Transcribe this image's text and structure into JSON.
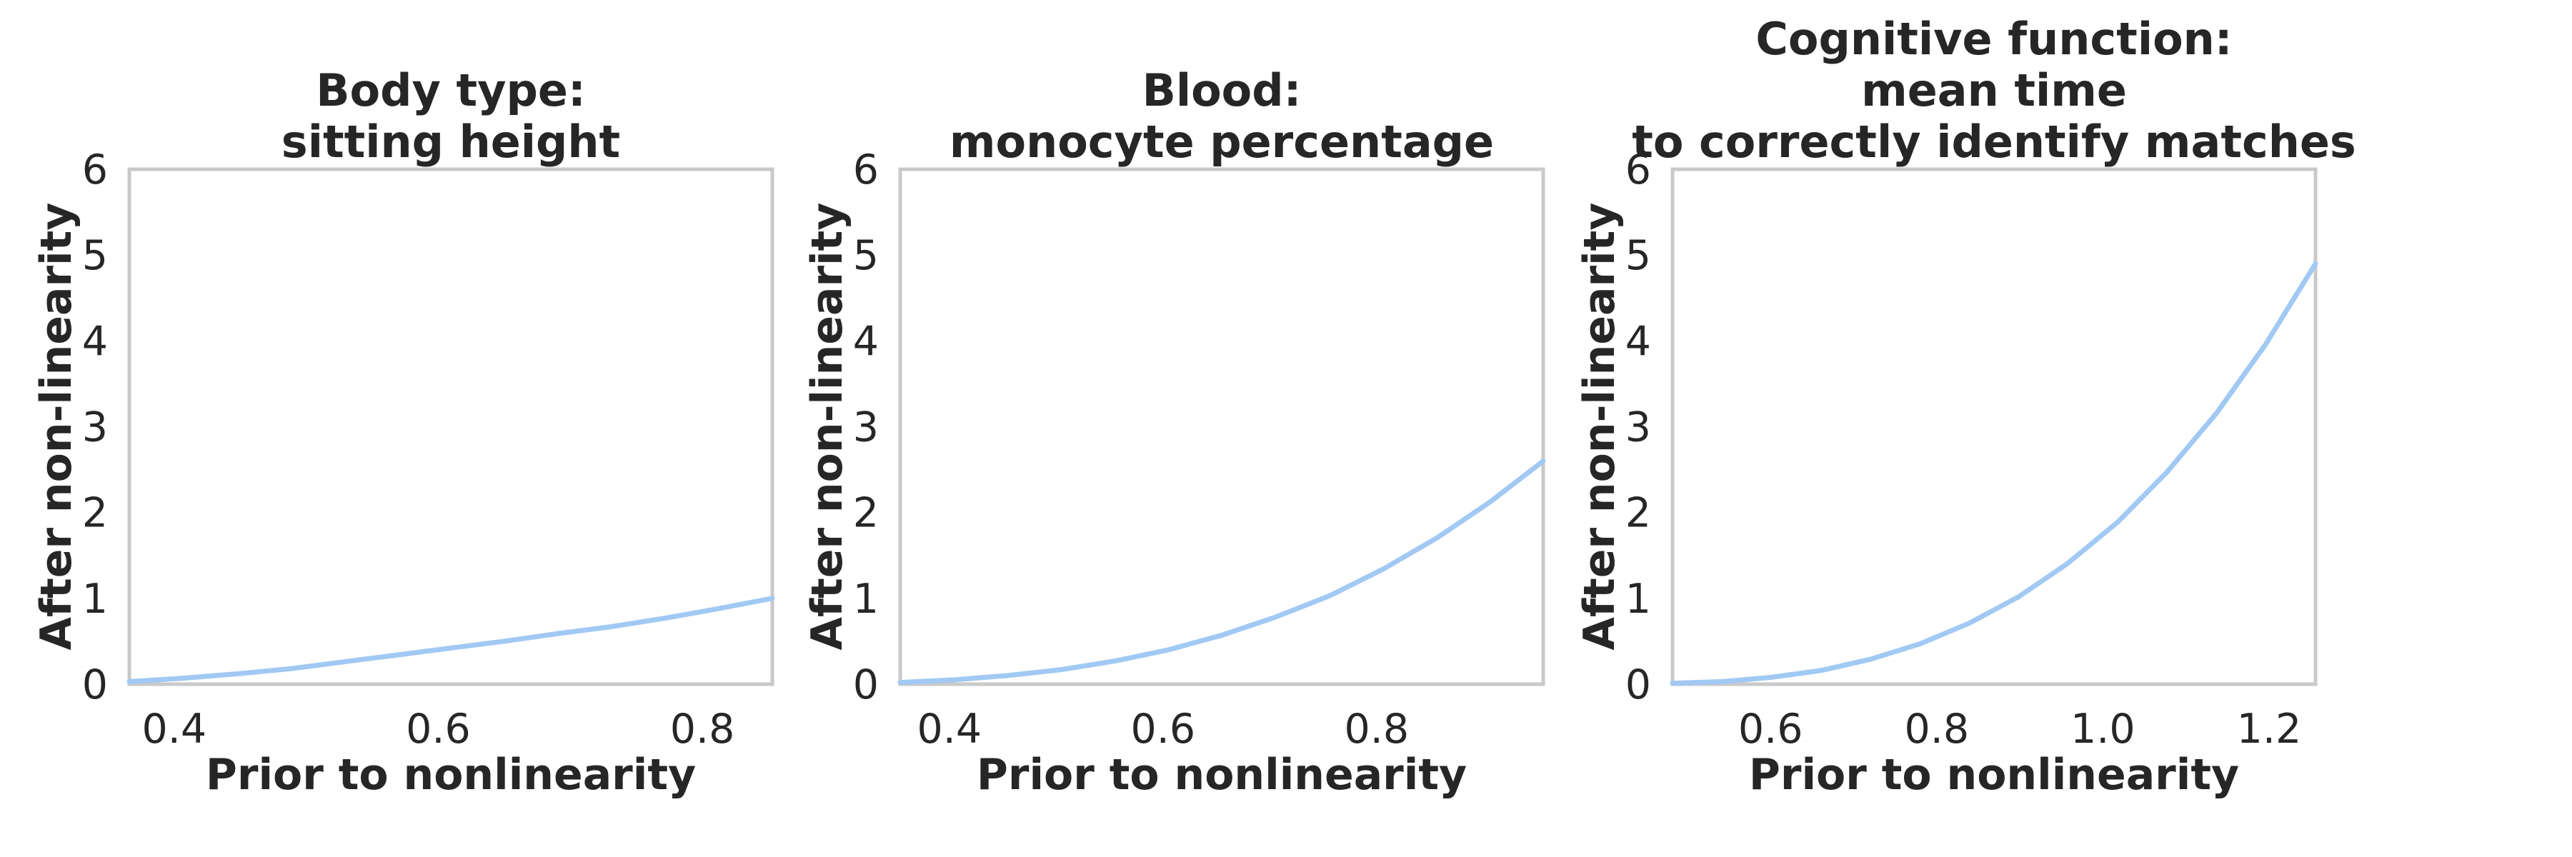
{
  "figure": {
    "background_color": "#ffffff",
    "text_color": "#262626",
    "spine_color": "#c9c9c9",
    "curve_color": "#a1c9f4"
  },
  "chart_data": [
    {
      "type": "line",
      "title": "Body type:\nsitting height",
      "title_lines": [
        "Body type:",
        "sitting height"
      ],
      "xlabel": "Prior to nonlinearity",
      "ylabel": "After non-linearity",
      "xlim": [
        0.366,
        0.853
      ],
      "ylim": [
        0,
        6
      ],
      "x_ticks": [
        0.4,
        0.6,
        0.8
      ],
      "x_tick_labels": [
        "0.4",
        "0.6",
        "0.8"
      ],
      "y_ticks": [
        0,
        1,
        2,
        3,
        4,
        5,
        6
      ],
      "y_tick_labels": [
        "0",
        "1",
        "2",
        "3",
        "4",
        "5",
        "6"
      ],
      "grid": false,
      "legend": "none",
      "series": [
        {
          "name": "curve",
          "x": [
            0.366,
            0.407,
            0.447,
            0.488,
            0.528,
            0.569,
            0.609,
            0.65,
            0.691,
            0.731,
            0.772,
            0.812,
            0.853
          ],
          "y": [
            0.03,
            0.07,
            0.12,
            0.18,
            0.26,
            0.34,
            0.42,
            0.5,
            0.59,
            0.67,
            0.77,
            0.88,
            1.0
          ]
        }
      ]
    },
    {
      "type": "line",
      "title": "Blood:\nmonocyte percentage",
      "title_lines": [
        "Blood:",
        "monocyte percentage"
      ],
      "xlabel": "Prior to nonlinearity",
      "ylabel": "After non-linearity",
      "xlim": [
        0.354,
        0.956
      ],
      "ylim": [
        0,
        6
      ],
      "x_ticks": [
        0.4,
        0.6,
        0.8
      ],
      "x_tick_labels": [
        "0.4",
        "0.6",
        "0.8"
      ],
      "y_ticks": [
        0,
        1,
        2,
        3,
        4,
        5,
        6
      ],
      "y_tick_labels": [
        "0",
        "1",
        "2",
        "3",
        "4",
        "5",
        "6"
      ],
      "grid": false,
      "legend": "none",
      "series": [
        {
          "name": "curve",
          "x": [
            0.354,
            0.404,
            0.454,
            0.505,
            0.555,
            0.605,
            0.655,
            0.705,
            0.756,
            0.806,
            0.856,
            0.906,
            0.956
          ],
          "y": [
            0.02,
            0.05,
            0.1,
            0.17,
            0.27,
            0.4,
            0.57,
            0.78,
            1.03,
            1.34,
            1.7,
            2.12,
            2.6
          ]
        }
      ]
    },
    {
      "type": "line",
      "title": "Cognitive function:\nmean time\nto correctly identify matches",
      "title_lines": [
        "Cognitive function:",
        "mean time",
        "to correctly identify matches"
      ],
      "xlabel": "Prior to nonlinearity",
      "ylabel": "After non-linearity",
      "xlim": [
        0.482,
        1.256
      ],
      "ylim": [
        0,
        6
      ],
      "x_ticks": [
        0.6,
        0.8,
        1.0,
        1.2
      ],
      "x_tick_labels": [
        "0.6",
        "0.8",
        "1.0",
        "1.2"
      ],
      "y_ticks": [
        0,
        1,
        2,
        3,
        4,
        5,
        6
      ],
      "y_tick_labels": [
        "0",
        "1",
        "2",
        "3",
        "4",
        "5",
        "6"
      ],
      "grid": false,
      "legend": "none",
      "series": [
        {
          "name": "curve",
          "x": [
            0.482,
            0.542,
            0.601,
            0.661,
            0.72,
            0.78,
            0.839,
            0.899,
            0.958,
            1.018,
            1.077,
            1.137,
            1.196,
            1.256
          ],
          "y": [
            0.01,
            0.03,
            0.08,
            0.16,
            0.29,
            0.47,
            0.71,
            1.02,
            1.41,
            1.89,
            2.47,
            3.16,
            3.96,
            4.9
          ]
        }
      ]
    }
  ]
}
